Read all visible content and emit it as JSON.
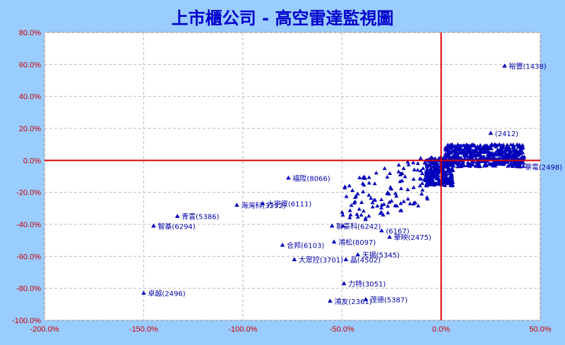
{
  "chart_data": {
    "type": "scatter",
    "title": "上市櫃公司 - 高空雷達監視圖",
    "xlim": [
      -2.0,
      0.5
    ],
    "ylim": [
      -1.0,
      0.8
    ],
    "x_ticks": [
      "-200.0%",
      "-150.0%",
      "-100.0%",
      "-50.0%",
      "0.0%",
      "50.0%"
    ],
    "y_ticks": [
      "80.0%",
      "60.0%",
      "40.0%",
      "20.0%",
      "0.0%",
      "-20.0%",
      "-40.0%",
      "-60.0%",
      "-80.0%",
      "-100.0%"
    ],
    "grid": true,
    "colors": {
      "background": "#99ccff",
      "plot": "#ffffff",
      "axis_zero": "#dd0000",
      "marker": "#0000bb",
      "tick": "#cc0000",
      "title": "#0000cc"
    },
    "points": [
      {
        "x": 0.32,
        "y": 0.59,
        "label": "裕豐(1438)"
      },
      {
        "x": -0.77,
        "y": -0.11,
        "label": "福陞(8066)"
      },
      {
        "x": -1.03,
        "y": -0.28,
        "label": "海灣科(3292)"
      },
      {
        "x": -0.9,
        "y": -0.27,
        "label": "大宇資(6111)"
      },
      {
        "x": -1.33,
        "y": -0.35,
        "label": "青雲(5386)"
      },
      {
        "x": -1.45,
        "y": -0.41,
        "label": "智基(6294)"
      },
      {
        "x": -0.8,
        "y": -0.53,
        "label": "合邦(6103)"
      },
      {
        "x": -0.55,
        "y": -0.41,
        "label": "聯豪科(6242)"
      },
      {
        "x": -0.54,
        "y": -0.51,
        "label": "鴻松(8097)"
      },
      {
        "x": -0.74,
        "y": -0.62,
        "label": "大眾控(3701)"
      },
      {
        "x": -0.42,
        "y": -0.59,
        "label": "天揚(5345)"
      },
      {
        "x": -0.26,
        "y": -0.48,
        "label": "華映(2475)"
      },
      {
        "x": -0.49,
        "y": -0.77,
        "label": "力特(3051)"
      },
      {
        "x": -1.5,
        "y": -0.83,
        "label": "卓越(2496)"
      },
      {
        "x": -0.56,
        "y": -0.88,
        "label": "鴻友(2361)"
      },
      {
        "x": -0.38,
        "y": -0.87,
        "label": "茂德(5387)"
      },
      {
        "x": 0.4,
        "y": -0.04,
        "label": "華電(2498)"
      },
      {
        "x": -0.3,
        "y": -0.44,
        "label": "(6167)"
      },
      {
        "x": -0.48,
        "y": -0.62,
        "label": "晶(4502)"
      },
      {
        "x": 0.25,
        "y": 0.17,
        "label": "(2412)"
      }
    ]
  }
}
